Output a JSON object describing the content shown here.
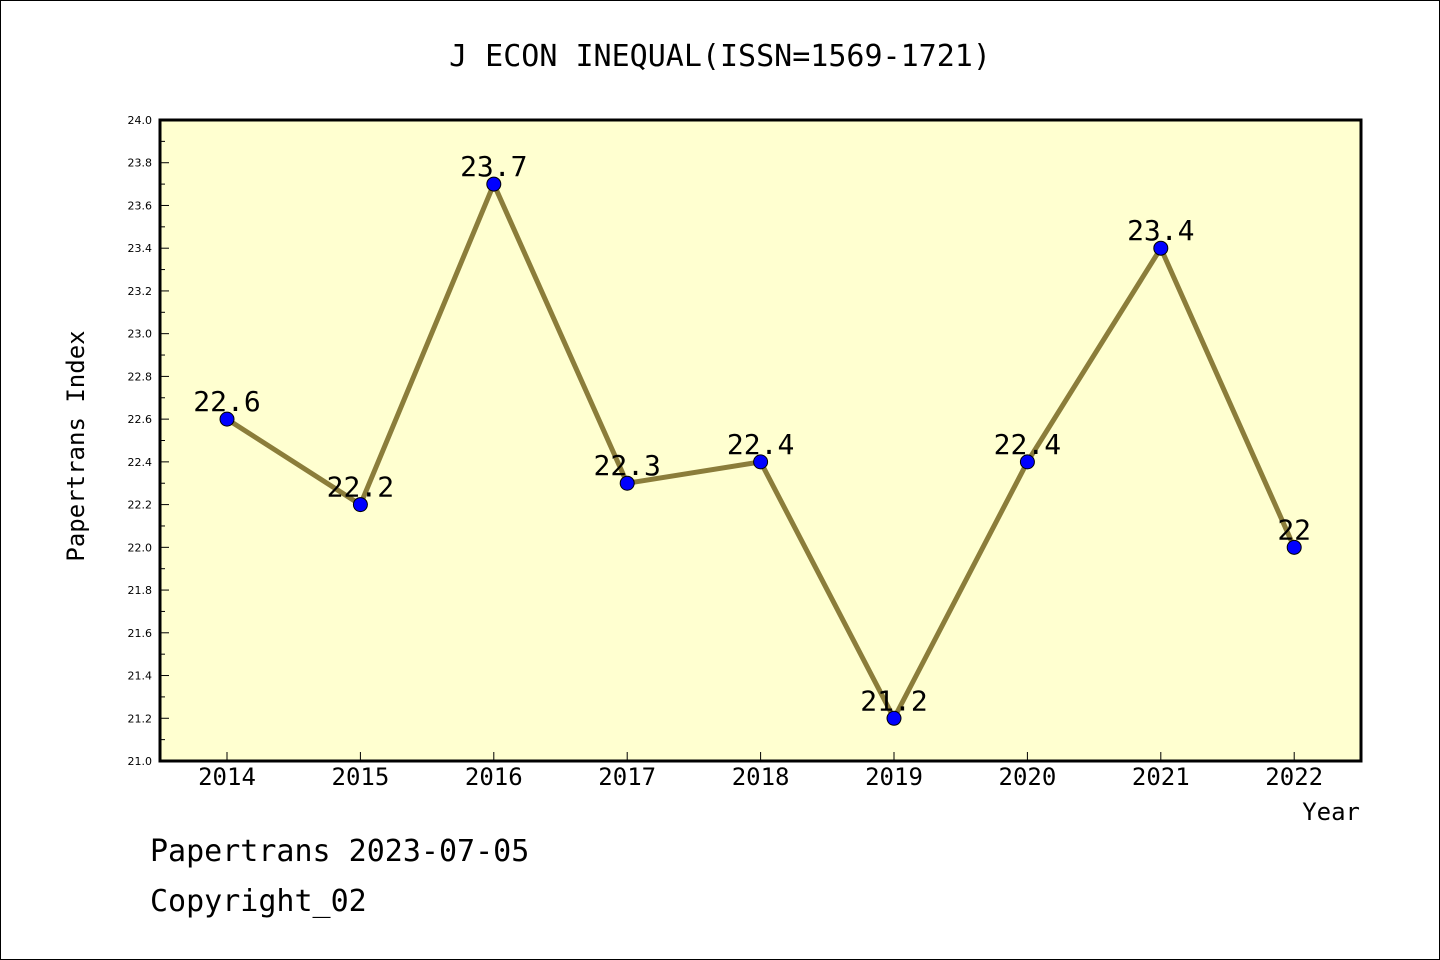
{
  "chart_data": {
    "type": "line",
    "title": "J ECON INEQUAL(ISSN=1569-1721)",
    "xlabel": "Year",
    "ylabel": "Papertrans Index",
    "categories": [
      "2014",
      "2015",
      "2016",
      "2017",
      "2018",
      "2019",
      "2020",
      "2021",
      "2022"
    ],
    "series": [
      {
        "values": [
          22.6,
          22.2,
          23.7,
          22.3,
          22.4,
          21.2,
          22.4,
          23.4,
          22.0
        ],
        "labels": [
          "22.6",
          "22.2",
          "23.7",
          "22.3",
          "22.4",
          "21.2",
          "22.4",
          "23.4",
          "22"
        ]
      }
    ],
    "ylim": [
      21.0,
      24.0
    ],
    "yticks": [
      "21.0",
      "21.2",
      "21.4",
      "21.6",
      "21.8",
      "22.0",
      "22.2",
      "22.4",
      "22.6",
      "22.8",
      "23.0",
      "23.2",
      "23.4",
      "23.6",
      "23.8",
      "24.0"
    ],
    "grid": false,
    "colors": {
      "plot_background": "#ffffd0",
      "line": "#8b7d3a",
      "marker": "#0000ff"
    }
  },
  "footer": {
    "date_line": "Papertrans 2023-07-05",
    "copyright": "Copyright_02"
  }
}
